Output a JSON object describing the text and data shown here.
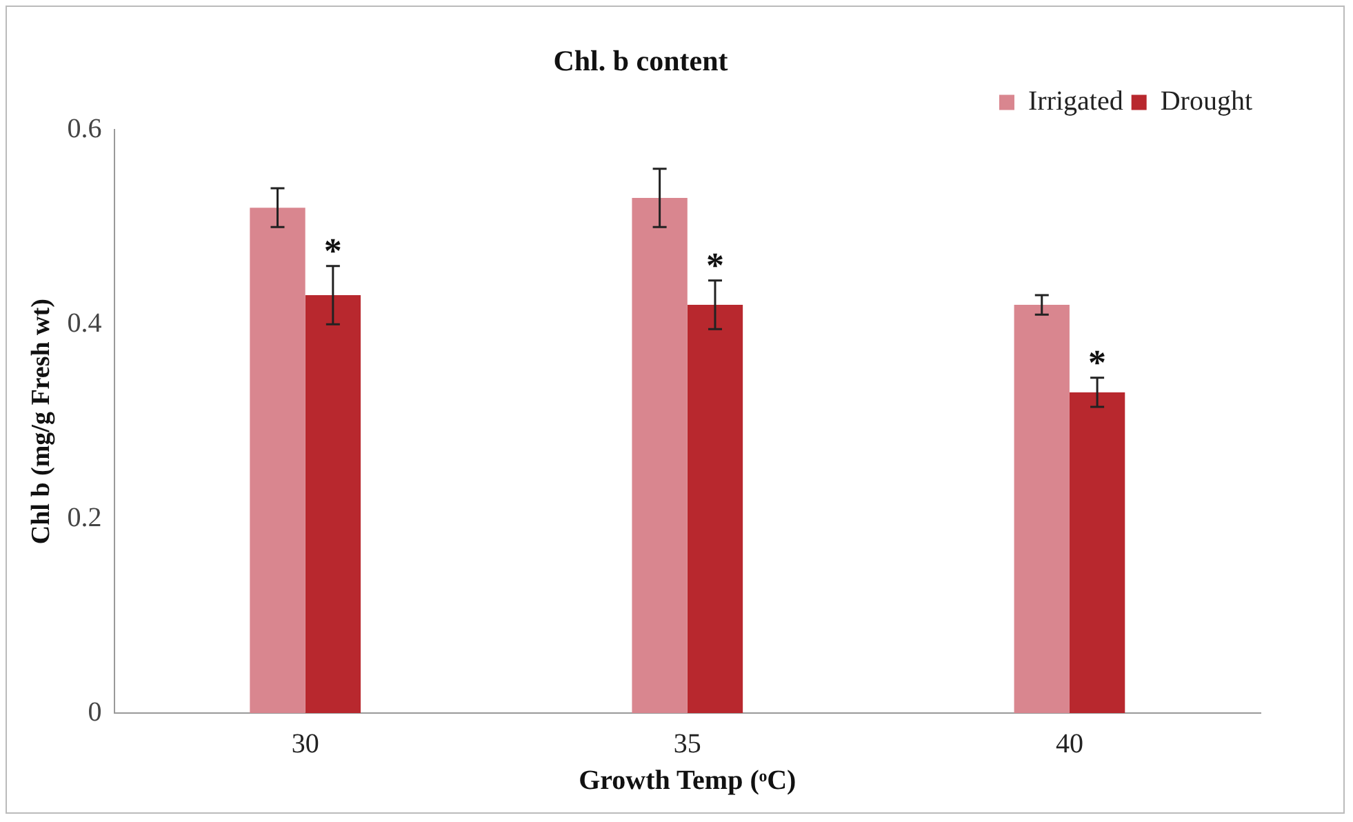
{
  "chart_data": {
    "type": "bar",
    "title": "Chl. b content",
    "xlabel": "Growth Temp (ᵒC)",
    "ylabel": "Chl b (mg/g Fresh wt)",
    "categories": [
      "30",
      "35",
      "40"
    ],
    "series": [
      {
        "name": "Irrigated",
        "color": "#d9868f",
        "values": [
          0.52,
          0.53,
          0.42
        ],
        "errors": [
          0.02,
          0.03,
          0.01
        ]
      },
      {
        "name": "Drought",
        "color": "#b8282e",
        "values": [
          0.43,
          0.42,
          0.33
        ],
        "errors": [
          0.03,
          0.025,
          0.015
        ]
      }
    ],
    "ylim": [
      0,
      0.6
    ],
    "yticks": [
      0,
      0.2,
      0.4,
      0.6
    ],
    "grid": false,
    "legend": "top right",
    "annotations": [
      {
        "text": "*",
        "x": "30",
        "y": 0.46
      },
      {
        "text": "*",
        "x": "35",
        "y": 0.445
      },
      {
        "text": "*",
        "x": "40",
        "y": 0.345
      }
    ]
  }
}
